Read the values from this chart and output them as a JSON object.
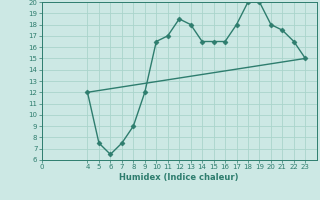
{
  "line1_x": [
    4,
    5,
    6,
    7,
    8,
    9,
    10,
    11,
    12,
    13,
    14,
    15,
    16,
    17,
    18,
    19,
    20,
    21,
    22,
    23
  ],
  "line1_y": [
    12,
    7.5,
    6.5,
    7.5,
    9,
    12,
    16.5,
    17,
    18.5,
    18,
    16.5,
    16.5,
    16.5,
    18,
    20,
    20,
    18,
    17.5,
    16.5,
    15
  ],
  "line2_x": [
    4,
    23
  ],
  "line2_y": [
    12,
    15
  ],
  "color": "#2e7d6e",
  "bg_color": "#cce8e4",
  "grid_color": "#aad4cc",
  "xlabel": "Humidex (Indice chaleur)",
  "xlim": [
    0,
    24
  ],
  "ylim": [
    6,
    20
  ],
  "xticks": [
    0,
    4,
    5,
    6,
    7,
    8,
    9,
    10,
    11,
    12,
    13,
    14,
    15,
    16,
    17,
    18,
    19,
    20,
    21,
    22,
    23
  ],
  "yticks": [
    6,
    7,
    8,
    9,
    10,
    11,
    12,
    13,
    14,
    15,
    16,
    17,
    18,
    19,
    20
  ],
  "marker": "D",
  "markersize": 2.5,
  "linewidth": 1.0
}
